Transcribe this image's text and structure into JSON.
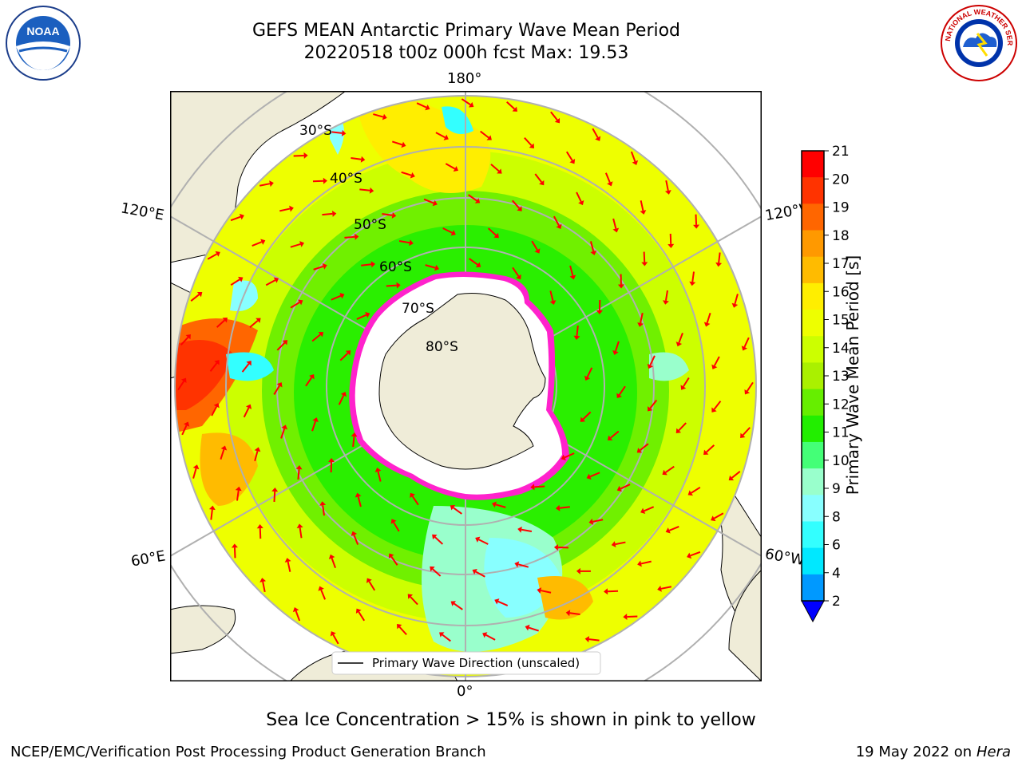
{
  "header": {
    "title_line1": "GEFS MEAN Antarctic Primary Wave Mean Period",
    "title_line2": "20220518 t00z 000h fcst   Max: 19.53"
  },
  "map": {
    "projection": "south-polar-stereographic",
    "lon_labels": {
      "top": "180°",
      "bottom": "0°",
      "upper_left": "120°E",
      "upper_right": "120°W",
      "lower_left": "60°E",
      "lower_right": "60°W"
    },
    "lat_labels": [
      "30°S",
      "40°S",
      "50°S",
      "60°S",
      "70°S",
      "80°S"
    ],
    "legend_label": "Primary Wave Direction (unscaled)",
    "colors": {
      "land": "#efecd8",
      "ice": "#ffffff",
      "ice_edge": "#ff22cc",
      "arrow": "#ff0000",
      "grid": "#b0b0b0"
    }
  },
  "colorbar": {
    "label": "Primary Wave Mean Period [s]",
    "ticks": [
      "21",
      "20",
      "19",
      "18",
      "17",
      "16",
      "15",
      "14",
      "13",
      "12",
      "11",
      "10",
      "9",
      "8",
      "6",
      "4",
      "2"
    ],
    "bands_top_to_bottom": [
      "#ff0000",
      "#ff3300",
      "#ff6600",
      "#ff9900",
      "#ffbb00",
      "#ffee00",
      "#eeff00",
      "#ccff00",
      "#aaf000",
      "#66ee00",
      "#22ee00",
      "#44ff77",
      "#99ffcc",
      "#88ffff",
      "#33ffff",
      "#00e8ff",
      "#0099ff"
    ],
    "extend_color": "#0000ff"
  },
  "footer": {
    "note": "Sea Ice Concentration > 15% is shown in pink to yellow",
    "credit": "NCEP/EMC/Verification Post Processing Product Generation Branch",
    "date_prefix": "19 May 2022 on",
    "machine": "Hera"
  },
  "logos": {
    "left": "NOAA",
    "right": "NATIONAL WEATHER SERVICE"
  }
}
